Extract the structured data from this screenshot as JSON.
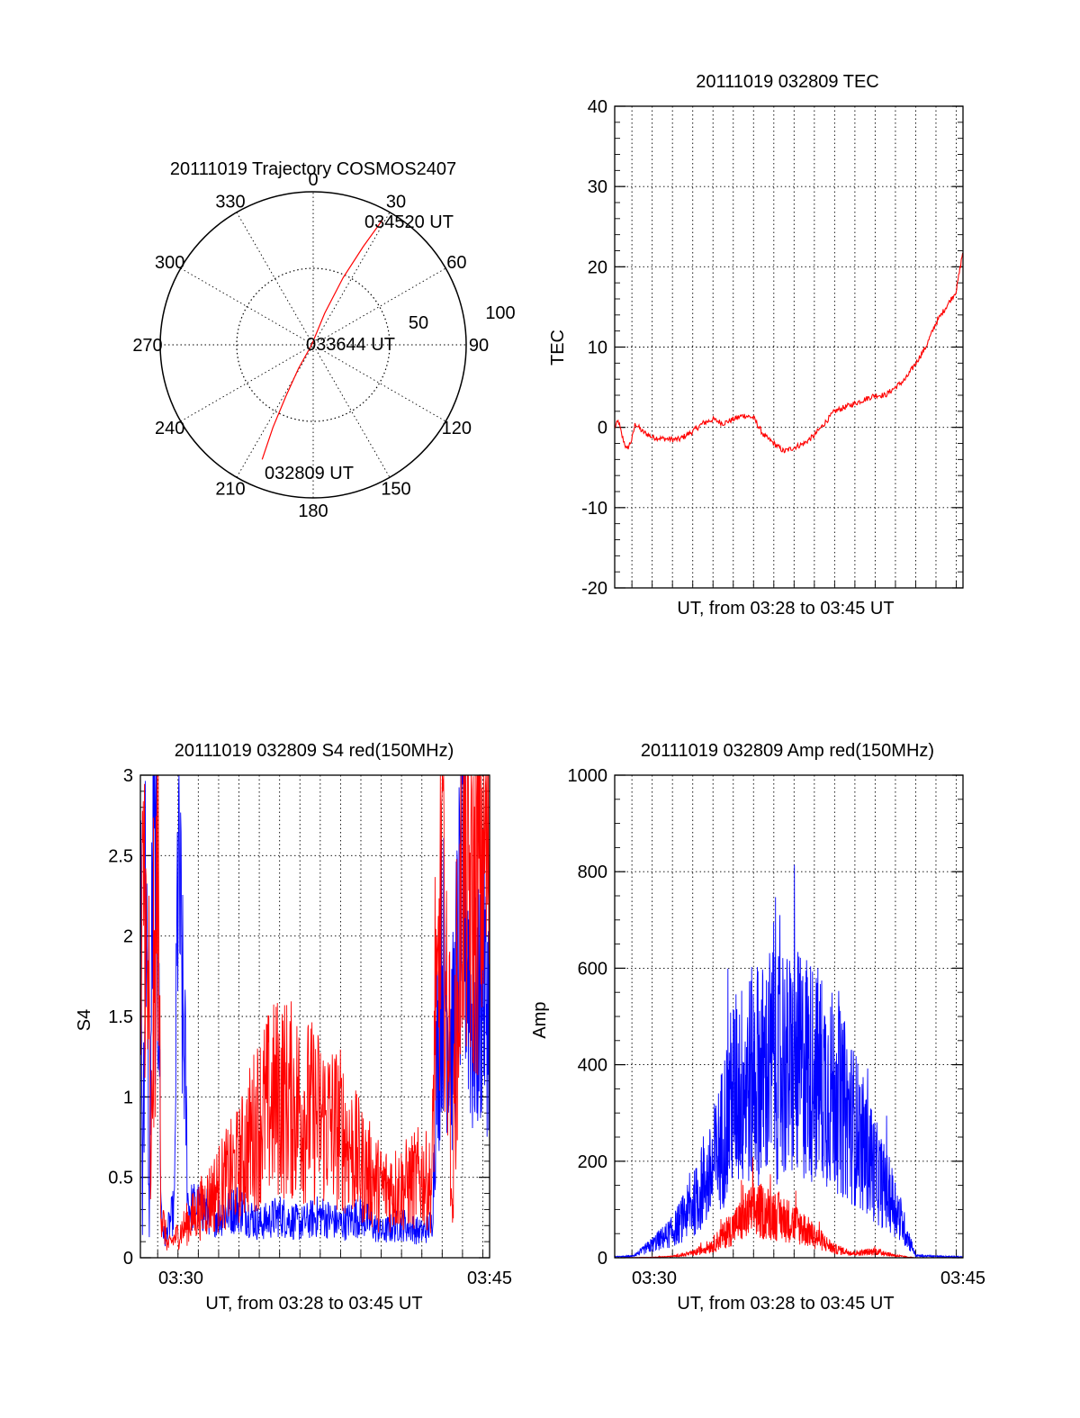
{
  "chart_data": [
    {
      "type": "polar-trajectory",
      "title": "20111019 Trajectory COSMOS2407",
      "angle_labels": [
        "0",
        "30",
        "60",
        "90",
        "120",
        "150",
        "180",
        "210",
        "240",
        "270",
        "300",
        "330"
      ],
      "radius_labels": [
        "50",
        "100"
      ],
      "rmax": 100,
      "annotations": [
        "034520 UT",
        "033644 UT",
        "032809 UT"
      ],
      "trajectory": {
        "color": "#ff0000",
        "points": [
          {
            "azimuth": 204,
            "elevation_ring": 82
          },
          {
            "azimuth": 206,
            "elevation_ring": 60
          },
          {
            "azimuth": 208,
            "elevation_ring": 38
          },
          {
            "azimuth": 212,
            "elevation_ring": 18
          },
          {
            "azimuth": 270,
            "elevation_ring": 1
          },
          {
            "azimuth": 20,
            "elevation_ring": 22
          },
          {
            "azimuth": 24,
            "elevation_ring": 48
          },
          {
            "azimuth": 27,
            "elevation_ring": 72
          },
          {
            "azimuth": 29,
            "elevation_ring": 93
          }
        ]
      }
    },
    {
      "type": "line",
      "title": "20111019 032809 TEC",
      "xlabel": "UT, from 03:28 to 03:45 UT",
      "ylabel": "TEC",
      "xlim": [
        "03:28:09",
        "03:45:20"
      ],
      "ylim": [
        -20,
        40
      ],
      "yticks": [
        "-20",
        "-10",
        "0",
        "10",
        "20",
        "30",
        "40"
      ],
      "xtick_labels": [],
      "grid": true,
      "series": [
        {
          "color": "#ff0000",
          "x": [
            "03:28:09",
            "03:28:20",
            "03:28:30",
            "03:28:45",
            "03:29:00",
            "03:29:10",
            "03:29:30",
            "03:30:00",
            "03:30:30",
            "03:31:00",
            "03:31:20",
            "03:32:00",
            "03:32:30",
            "03:33:00",
            "03:33:30",
            "03:34:00",
            "03:34:30",
            "03:35:00",
            "03:35:30",
            "03:36:00",
            "03:36:30",
            "03:37:00",
            "03:37:30",
            "03:38:00",
            "03:38:30",
            "03:39:00",
            "03:39:30",
            "03:40:00",
            "03:40:30",
            "03:41:00",
            "03:41:30",
            "03:42:00",
            "03:42:30",
            "03:43:00",
            "03:43:30",
            "03:44:00",
            "03:44:30",
            "03:45:00",
            "03:45:20"
          ],
          "y": [
            0,
            0.8,
            -1,
            -2.8,
            -1.5,
            0.5,
            -0.5,
            -1.2,
            -1.4,
            -1.5,
            -1.5,
            -0.5,
            0.5,
            1.0,
            0.5,
            1.0,
            1.5,
            1.2,
            -1,
            -2,
            -3,
            -2.5,
            -2,
            -1,
            0.5,
            2,
            2.5,
            3,
            3.5,
            4,
            4.0,
            5,
            6,
            8,
            10,
            13,
            15,
            17,
            22
          ]
        }
      ]
    },
    {
      "type": "line",
      "title": "20111019 032809 S4 red(150MHz)",
      "xlabel": "UT, from 03:28 to 03:45 UT",
      "ylabel": "S4",
      "xlim": [
        "03:28:09",
        "03:45:20"
      ],
      "ylim": [
        0,
        3
      ],
      "yticks": [
        "0",
        "0.5",
        "1",
        "1.5",
        "2",
        "2.5",
        "3"
      ],
      "xtick_labels": [
        "03:30",
        "03:45"
      ],
      "grid": true,
      "series": [
        {
          "color": "#0000ff",
          "x": [
            "03:28:09",
            "03:28:15",
            "03:28:25",
            "03:28:35",
            "03:28:45",
            "03:29:00",
            "03:29:10",
            "03:29:20",
            "03:29:35",
            "03:29:50",
            "03:30:00",
            "03:30:30",
            "03:31:00",
            "03:32:00",
            "03:33:00",
            "03:34:00",
            "03:35:00",
            "03:36:00",
            "03:37:00",
            "03:38:00",
            "03:39:00",
            "03:40:00",
            "03:41:00",
            "03:42:00",
            "03:42:30",
            "03:43:00",
            "03:43:30",
            "03:44:00",
            "03:44:30",
            "03:45:00",
            "03:45:20"
          ],
          "y": [
            3,
            0.2,
            3,
            0.1,
            2.8,
            2.4,
            0.3,
            0.1,
            0.2,
            0.3,
            3,
            0.3,
            0.3,
            0.25,
            0.3,
            0.2,
            0.25,
            0.2,
            0.25,
            0.2,
            0.25,
            0.15,
            0.2,
            0.15,
            0.2,
            2.2,
            1.5,
            2.8,
            1.6,
            2.0,
            1.8
          ]
        },
        {
          "color": "#ff0000",
          "x": [
            "03:28:09",
            "03:28:20",
            "03:28:40",
            "03:29:00",
            "03:29:10",
            "03:29:30",
            "03:30:00",
            "03:30:30",
            "03:31:00",
            "03:32:00",
            "03:33:00",
            "03:34:00",
            "03:35:00",
            "03:36:00",
            "03:37:00",
            "03:38:00",
            "03:39:00",
            "03:40:00",
            "03:41:00",
            "03:42:00",
            "03:42:30",
            "03:43:00",
            "03:43:30",
            "03:44:00",
            "03:44:30",
            "03:45:00",
            "03:45:20"
          ],
          "y": [
            1.5,
            3,
            0.2,
            3,
            0.2,
            0.05,
            0.1,
            0.15,
            0.2,
            0.3,
            0.4,
            0.6,
            0.7,
            0.65,
            0.6,
            0.55,
            0.4,
            0.3,
            0.3,
            0.35,
            0.3,
            3,
            0.1,
            3,
            2.5,
            3,
            3
          ]
        }
      ]
    },
    {
      "type": "line",
      "title": "20111019 032809 Amp red(150MHz)",
      "xlabel": "UT, from 03:28 to 03:45 UT",
      "ylabel": "Amp",
      "xlim": [
        "03:28:09",
        "03:45:20"
      ],
      "ylim": [
        0,
        1000
      ],
      "yticks": [
        "0",
        "200",
        "400",
        "600",
        "800",
        "1000"
      ],
      "xtick_labels": [
        "03:30",
        "03:45"
      ],
      "grid": true,
      "series": [
        {
          "color": "#0000ff",
          "x": [
            "03:28:09",
            "03:29:00",
            "03:29:30",
            "03:30:00",
            "03:31:00",
            "03:32:00",
            "03:33:00",
            "03:34:00",
            "03:35:00",
            "03:36:00",
            "03:37:00",
            "03:38:00",
            "03:39:00",
            "03:40:00",
            "03:41:00",
            "03:42:00",
            "03:42:30",
            "03:43:00",
            "03:44:00",
            "03:45:20"
          ],
          "y": [
            2,
            3,
            15,
            30,
            60,
            120,
            200,
            380,
            420,
            430,
            440,
            430,
            380,
            300,
            200,
            120,
            60,
            5,
            3,
            2
          ]
        },
        {
          "color": "#ff0000",
          "x": [
            "03:28:09",
            "03:30:00",
            "03:31:00",
            "03:32:00",
            "03:33:00",
            "03:34:00",
            "03:35:00",
            "03:36:00",
            "03:37:00",
            "03:38:00",
            "03:39:00",
            "03:40:00",
            "03:41:00",
            "03:42:00",
            "03:42:30",
            "03:43:00",
            "03:45:20"
          ],
          "y": [
            0,
            1,
            3,
            10,
            30,
            70,
            110,
            100,
            80,
            50,
            20,
            10,
            15,
            5,
            2,
            0,
            0
          ]
        }
      ]
    }
  ]
}
